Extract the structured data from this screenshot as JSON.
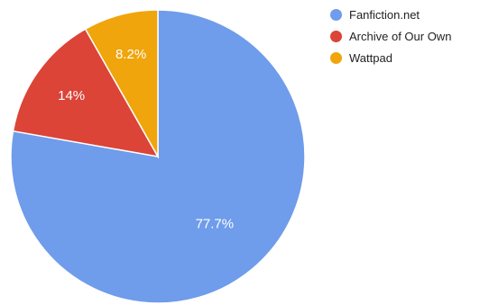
{
  "chart_data": {
    "type": "pie",
    "title": "",
    "legend_position": "right",
    "slices": [
      {
        "name": "Fanfiction.net",
        "value": 77.7,
        "label": "77.7%",
        "color": "#6f9ceb"
      },
      {
        "name": "Archive of Our Own",
        "value": 14,
        "label": "14%",
        "color": "#db4437"
      },
      {
        "name": "Wattpad",
        "value": 8.2,
        "label": "8.2%",
        "color": "#efa50b"
      }
    ]
  }
}
